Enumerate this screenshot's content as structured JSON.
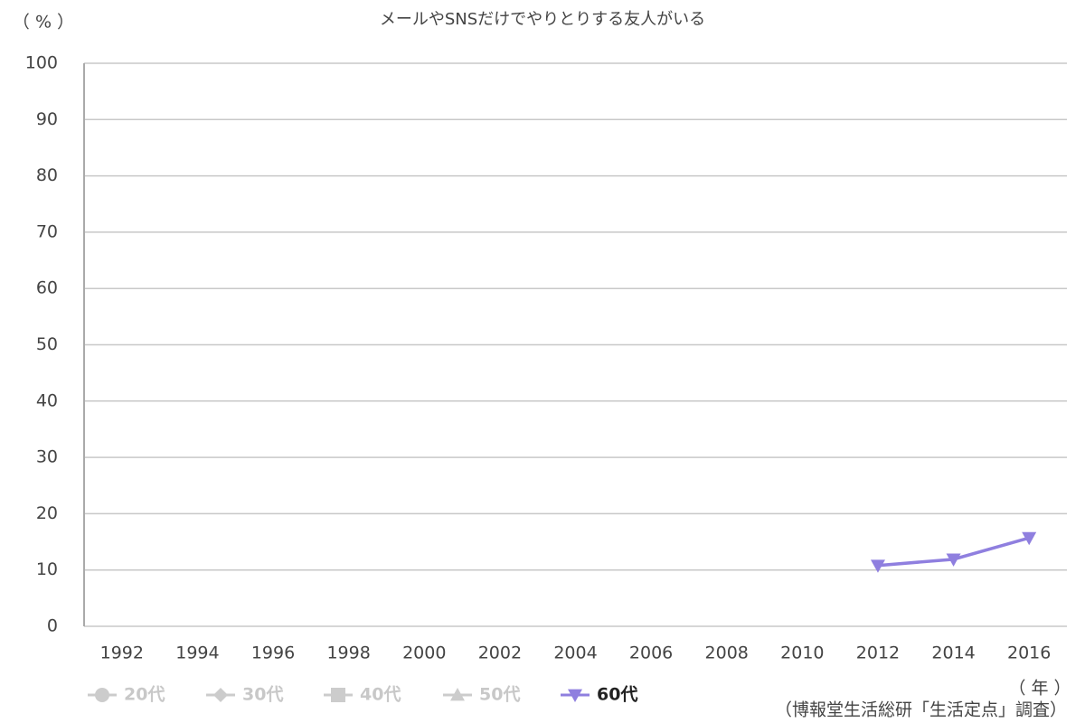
{
  "chart_data": {
    "type": "line",
    "title": "メールやSNSだけでやりとりする友人がいる",
    "y_unit_label": "（ % ）",
    "x_unit_label": "（ 年 ）",
    "source": "（博報堂生活総研「生活定点」調査）",
    "categories": [
      "1992",
      "1994",
      "1996",
      "1998",
      "2000",
      "2002",
      "2004",
      "2006",
      "2008",
      "2010",
      "2012",
      "2014",
      "2016"
    ],
    "series": [
      {
        "name": "20代",
        "color": "#cccccc",
        "marker": "circle",
        "visible": false,
        "values": [
          null,
          null,
          null,
          null,
          null,
          null,
          null,
          null,
          null,
          null,
          null,
          null,
          null
        ]
      },
      {
        "name": "30代",
        "color": "#cccccc",
        "marker": "diamond",
        "visible": false,
        "values": [
          null,
          null,
          null,
          null,
          null,
          null,
          null,
          null,
          null,
          null,
          null,
          null,
          null
        ]
      },
      {
        "name": "40代",
        "color": "#cccccc",
        "marker": "square",
        "visible": false,
        "values": [
          null,
          null,
          null,
          null,
          null,
          null,
          null,
          null,
          null,
          null,
          null,
          null,
          null
        ]
      },
      {
        "name": "50代",
        "color": "#cccccc",
        "marker": "triangle",
        "visible": false,
        "values": [
          null,
          null,
          null,
          null,
          null,
          null,
          null,
          null,
          null,
          null,
          null,
          null,
          null
        ]
      },
      {
        "name": "60代",
        "color": "#8f7fdf",
        "marker": "triangle-down",
        "visible": true,
        "values": [
          null,
          null,
          null,
          null,
          null,
          null,
          null,
          null,
          null,
          null,
          10.8,
          11.9,
          15.7
        ]
      }
    ],
    "ylim": [
      0,
      100
    ],
    "yticks": [
      0,
      10,
      20,
      30,
      40,
      50,
      60,
      70,
      80,
      90,
      100
    ],
    "grid": true
  }
}
